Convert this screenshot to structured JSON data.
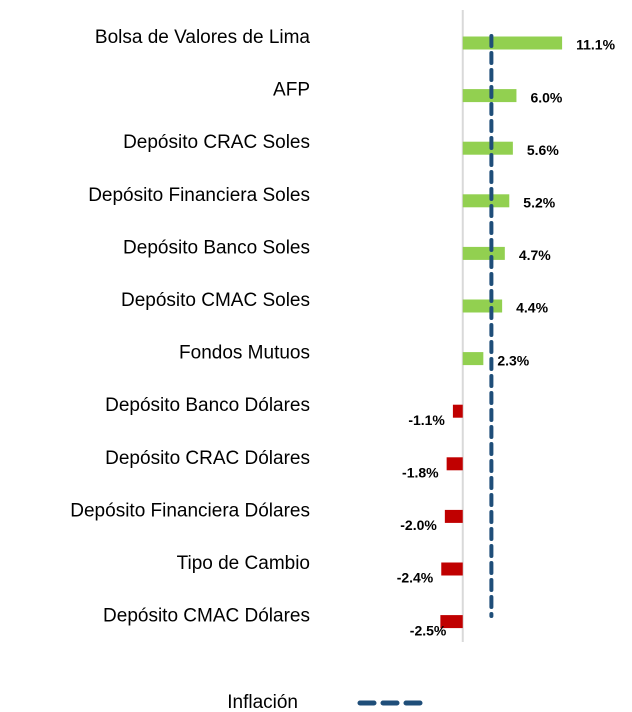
{
  "chart_data": {
    "type": "barh",
    "categories": [
      "Bolsa de Valores de Lima",
      "AFP",
      "Depósito CRAC Soles",
      "Depósito Financiera Soles",
      "Depósito Banco Soles",
      "Depósito CMAC Soles",
      "Fondos Mutuos",
      "Depósito Banco Dólares",
      "Depósito CRAC Dólares",
      "Depósito Financiera Dólares",
      "Tipo de Cambio",
      "Depósito CMAC Dólares"
    ],
    "values": [
      11.1,
      6.0,
      5.6,
      5.2,
      4.7,
      4.4,
      2.3,
      -1.1,
      -1.8,
      -2.0,
      -2.4,
      -2.5
    ],
    "value_labels": [
      "11.1%",
      "6.0%",
      "5.6%",
      "5.2%",
      "4.7%",
      "4.4%",
      "2.3%",
      "-1.1%",
      "-1.8%",
      "-2.0%",
      "-2.4%",
      "-2.5%"
    ],
    "positive_color": "#92d050",
    "negative_color": "#c00000",
    "xlim": [
      -5,
      15
    ],
    "reference_line": {
      "name": "Inflación",
      "value": 3.2,
      "color": "#1f4e79"
    },
    "legend": "bottom"
  }
}
